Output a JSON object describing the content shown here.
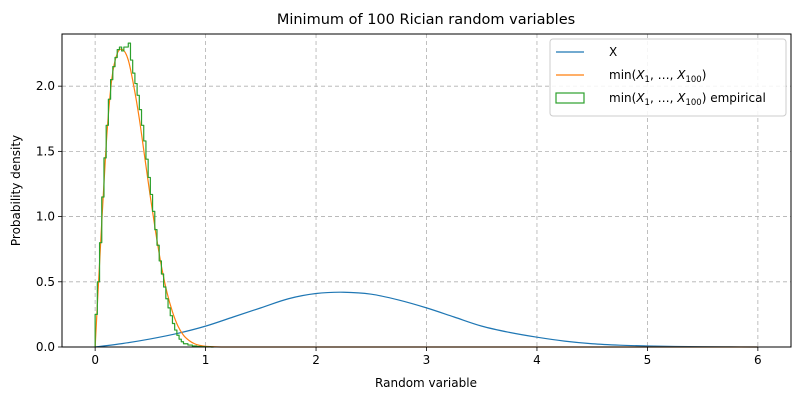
{
  "chart_data": {
    "type": "line",
    "title": "Minimum of 100 Rician random variables",
    "xlabel": "Random variable",
    "ylabel": "Probability density",
    "xlim": [
      -0.3,
      6.3
    ],
    "ylim": [
      0,
      2.4
    ],
    "xticks": [
      "0",
      "1",
      "2",
      "3",
      "4",
      "5",
      "6"
    ],
    "yticks": [
      "0.0",
      "0.5",
      "1.0",
      "1.5",
      "2.0"
    ],
    "grid": true,
    "legend_position": "top-right",
    "series": [
      {
        "name": "X",
        "kind": "line",
        "color": "#1f77b4",
        "x": [
          0,
          0.25,
          0.5,
          0.75,
          1,
          1.25,
          1.5,
          1.75,
          2,
          2.25,
          2.5,
          2.75,
          3,
          3.25,
          3.5,
          3.75,
          4,
          4.25,
          4.5,
          4.75,
          5,
          5.25,
          5.5,
          5.75,
          6
        ],
        "y": [
          0,
          0.027,
          0.062,
          0.105,
          0.16,
          0.23,
          0.3,
          0.37,
          0.41,
          0.42,
          0.405,
          0.36,
          0.3,
          0.23,
          0.16,
          0.112,
          0.075,
          0.045,
          0.025,
          0.014,
          0.008,
          0.004,
          0.002,
          0.001,
          0
        ]
      },
      {
        "name_parts": [
          "min(",
          "X",
          "1",
          ", …, ",
          "X",
          "100",
          ")"
        ],
        "kind": "line",
        "color": "#ff7f0e",
        "x": [
          0,
          0.05,
          0.1,
          0.15,
          0.2,
          0.25,
          0.3,
          0.35,
          0.4,
          0.45,
          0.5,
          0.55,
          0.6,
          0.65,
          0.7,
          0.75,
          0.8,
          0.85,
          0.9,
          0.95,
          1,
          1.1,
          1.2,
          1.5,
          2,
          3,
          4,
          5,
          6
        ],
        "y": [
          0,
          0.8,
          1.55,
          2.05,
          2.25,
          2.28,
          2.2,
          2.0,
          1.75,
          1.45,
          1.15,
          0.87,
          0.62,
          0.42,
          0.27,
          0.16,
          0.09,
          0.05,
          0.025,
          0.012,
          0.005,
          0.001,
          0,
          0,
          0,
          0,
          0,
          0,
          0
        ]
      },
      {
        "name_parts": [
          "min(",
          "X",
          "1",
          ", …, ",
          "X",
          "100",
          ") empirical"
        ],
        "kind": "step",
        "color": "#2ca02c",
        "x": [
          0,
          0.02,
          0.04,
          0.06,
          0.08,
          0.1,
          0.12,
          0.14,
          0.16,
          0.18,
          0.2,
          0.22,
          0.24,
          0.26,
          0.28,
          0.3,
          0.32,
          0.34,
          0.36,
          0.38,
          0.4,
          0.42,
          0.44,
          0.46,
          0.48,
          0.5,
          0.52,
          0.54,
          0.56,
          0.58,
          0.6,
          0.62,
          0.64,
          0.66,
          0.68,
          0.7,
          0.72,
          0.74,
          0.76,
          0.78,
          0.8,
          0.84,
          0.88,
          0.92,
          0.96,
          1.0,
          1.05
        ],
        "y": [
          0.25,
          0.5,
          0.8,
          1.15,
          1.45,
          1.7,
          1.9,
          2.05,
          2.15,
          2.22,
          2.28,
          2.3,
          2.27,
          2.3,
          2.3,
          2.33,
          2.2,
          2.1,
          2.02,
          1.93,
          1.82,
          1.7,
          1.58,
          1.44,
          1.3,
          1.17,
          1.04,
          0.9,
          0.78,
          0.66,
          0.56,
          0.46,
          0.37,
          0.3,
          0.24,
          0.18,
          0.13,
          0.09,
          0.06,
          0.04,
          0.025,
          0.015,
          0.008,
          0.004,
          0.002,
          0.001,
          0
        ]
      }
    ]
  }
}
